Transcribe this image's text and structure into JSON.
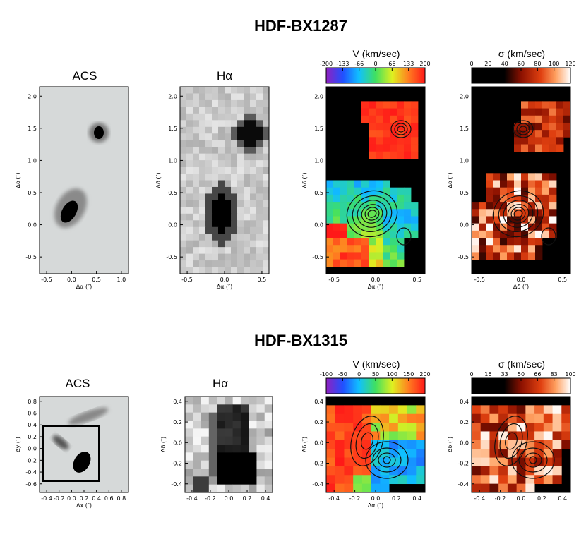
{
  "figure_titles": [
    "HDF-BX1287",
    "HDF-BX1315"
  ],
  "panels": {
    "acs": "ACS",
    "halpha": "Hα",
    "velocity": "V (km/sec)",
    "dispersion": "σ (km/sec)"
  },
  "axis_labels": {
    "ddelta": "Δδ (″)",
    "dalpha": "Δα (″)",
    "dy": "Δy (″)",
    "dx": "Δx (″)"
  },
  "row1": {
    "acs": {
      "xticks": [
        "-0.5",
        "0.0",
        "0.5",
        "1.0"
      ],
      "yticks": [
        "2.0",
        "1.5",
        "1.0",
        "0.5",
        "0.0",
        "-0.5"
      ],
      "xlabel": "Δα (″)",
      "ylabel": "Δδ (″)"
    },
    "ha": {
      "xticks": [
        "-0.5",
        "0.0",
        "0.5"
      ],
      "yticks": [
        "2.0",
        "1.5",
        "1.0",
        "0.5",
        "0.0",
        "-0.5"
      ],
      "xlabel": "Δα (″)",
      "ylabel": "Δδ (″)"
    },
    "vel": {
      "cb_ticks": [
        "-200",
        "-133",
        "-66",
        "0",
        "66",
        "133",
        "200"
      ],
      "xticks": [
        "-0.5",
        "0.0",
        "0.5"
      ],
      "yticks": [
        "2.0",
        "1.5",
        "1.0",
        "0.5",
        "0.0",
        "-0.5"
      ],
      "xlabel": "Δα (″)",
      "ylabel": "Δδ (″)"
    },
    "sig": {
      "cb_ticks": [
        "0",
        "20",
        "40",
        "60",
        "80",
        "100",
        "120"
      ],
      "xticks": [
        "-0.5",
        "0.0",
        "0.5"
      ],
      "yticks": [
        "2.0",
        "1.5",
        "1.0",
        "0.5",
        "0.0",
        "-0.5"
      ],
      "xlabel": "Δδ (″)",
      "ylabel": "Δδ (″)"
    }
  },
  "row2": {
    "acs": {
      "xticks": [
        "-0.4",
        "-0.2",
        "0.0",
        "0.2",
        "0.4",
        "0.6",
        "0.8"
      ],
      "yticks": [
        "0.8",
        "0.6",
        "0.4",
        "0.2",
        "0.0",
        "-0.2",
        "-0.4",
        "-0.6"
      ],
      "xlabel": "Δx (″)",
      "ylabel": "Δy (″)"
    },
    "ha": {
      "xticks": [
        "-0.4",
        "-0.2",
        "0.0",
        "0.2",
        "0.4"
      ],
      "yticks": [
        "0.4",
        "0.2",
        "0.0",
        "-0.2",
        "-0.4"
      ],
      "xlabel": "",
      "ylabel": "Δδ (″)"
    },
    "vel": {
      "cb_ticks": [
        "-100",
        "-50",
        "0",
        "50",
        "100",
        "150",
        "200"
      ],
      "xticks": [
        "-0.4",
        "-0.2",
        "0.0",
        "0.2",
        "0.4"
      ],
      "yticks": [
        "0.4",
        "0.2",
        "0.0",
        "-0.2",
        "-0.4"
      ],
      "xlabel": "Δα (″)",
      "ylabel": "Δδ (″)"
    },
    "sig": {
      "cb_ticks": [
        "0",
        "16",
        "33",
        "50",
        "66",
        "83",
        "100"
      ],
      "xticks": [
        "-0.4",
        "-0.2",
        "0.0",
        "0.2",
        "0.4"
      ],
      "yticks": [
        "0.4",
        "0.2",
        "0.0",
        "-0.2",
        "-0.4"
      ],
      "xlabel": "",
      "ylabel": "Δδ (″)"
    }
  }
}
